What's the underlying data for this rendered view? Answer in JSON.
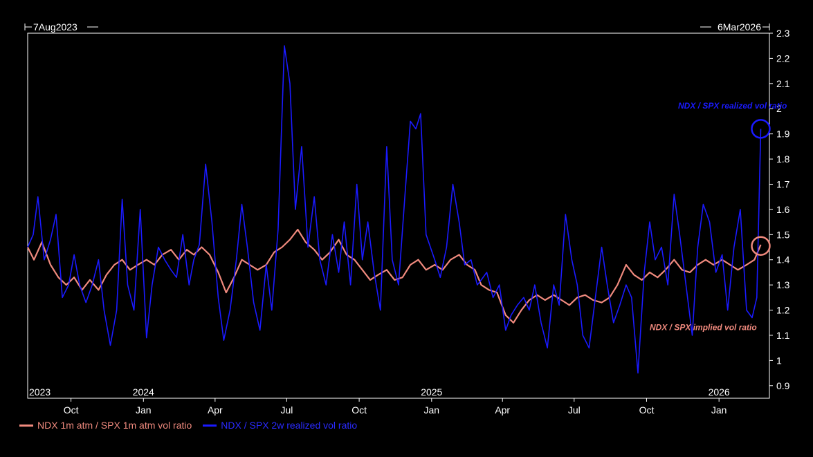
{
  "chart_data": {
    "type": "line",
    "range_start_label": "7Aug2023",
    "range_end_label": "6Mar2026",
    "x_start": "2023-08-07",
    "x_end": "2026-03-06",
    "ylim": [
      0.85,
      2.3
    ],
    "y_ticks": [
      0.9,
      1,
      1.1,
      1.2,
      1.3,
      1.4,
      1.5,
      1.6,
      1.7,
      1.8,
      1.9,
      2,
      2.1,
      2.2,
      2.3
    ],
    "x_month_ticks": [
      {
        "label": "Oct",
        "date": "2023-10-01"
      },
      {
        "label": "Jan",
        "date": "2024-01-01"
      },
      {
        "label": "Apr",
        "date": "2024-04-01"
      },
      {
        "label": "Jul",
        "date": "2024-07-01"
      },
      {
        "label": "Oct",
        "date": "2024-10-01"
      },
      {
        "label": "Jan",
        "date": "2025-01-01"
      },
      {
        "label": "Apr",
        "date": "2025-04-01"
      },
      {
        "label": "Jul",
        "date": "2025-07-01"
      },
      {
        "label": "Oct",
        "date": "2025-10-01"
      },
      {
        "label": "Jan",
        "date": "2026-01-01"
      }
    ],
    "x_year_labels": [
      {
        "label": "2023",
        "date": "2023-08-07"
      },
      {
        "label": "2024",
        "date": "2024-01-01"
      },
      {
        "label": "2025",
        "date": "2025-01-01"
      },
      {
        "label": "2026",
        "date": "2026-01-01"
      }
    ],
    "series": [
      {
        "name": "NDX 1m atm / SPX 1m atm vol ratio",
        "color": "#f08a7e",
        "points": [
          [
            "2023-08-07",
            1.45
          ],
          [
            "2023-08-15",
            1.4
          ],
          [
            "2023-08-25",
            1.47
          ],
          [
            "2023-09-05",
            1.38
          ],
          [
            "2023-09-15",
            1.33
          ],
          [
            "2023-09-25",
            1.3
          ],
          [
            "2023-10-05",
            1.33
          ],
          [
            "2023-10-15",
            1.28
          ],
          [
            "2023-10-25",
            1.32
          ],
          [
            "2023-11-05",
            1.28
          ],
          [
            "2023-11-15",
            1.34
          ],
          [
            "2023-11-25",
            1.38
          ],
          [
            "2023-12-05",
            1.4
          ],
          [
            "2023-12-15",
            1.36
          ],
          [
            "2023-12-25",
            1.38
          ],
          [
            "2024-01-05",
            1.4
          ],
          [
            "2024-01-15",
            1.38
          ],
          [
            "2024-01-25",
            1.42
          ],
          [
            "2024-02-05",
            1.44
          ],
          [
            "2024-02-15",
            1.4
          ],
          [
            "2024-02-25",
            1.44
          ],
          [
            "2024-03-05",
            1.42
          ],
          [
            "2024-03-15",
            1.45
          ],
          [
            "2024-03-25",
            1.42
          ],
          [
            "2024-04-05",
            1.35
          ],
          [
            "2024-04-15",
            1.27
          ],
          [
            "2024-04-25",
            1.33
          ],
          [
            "2024-05-05",
            1.4
          ],
          [
            "2024-05-15",
            1.38
          ],
          [
            "2024-05-25",
            1.36
          ],
          [
            "2024-06-05",
            1.38
          ],
          [
            "2024-06-15",
            1.43
          ],
          [
            "2024-06-25",
            1.45
          ],
          [
            "2024-07-05",
            1.48
          ],
          [
            "2024-07-15",
            1.52
          ],
          [
            "2024-07-25",
            1.47
          ],
          [
            "2024-08-05",
            1.44
          ],
          [
            "2024-08-15",
            1.4
          ],
          [
            "2024-08-25",
            1.43
          ],
          [
            "2024-09-05",
            1.48
          ],
          [
            "2024-09-15",
            1.42
          ],
          [
            "2024-09-25",
            1.4
          ],
          [
            "2024-10-05",
            1.36
          ],
          [
            "2024-10-15",
            1.32
          ],
          [
            "2024-10-25",
            1.34
          ],
          [
            "2024-11-05",
            1.36
          ],
          [
            "2024-11-15",
            1.32
          ],
          [
            "2024-11-25",
            1.33
          ],
          [
            "2024-12-05",
            1.38
          ],
          [
            "2024-12-15",
            1.4
          ],
          [
            "2024-12-25",
            1.36
          ],
          [
            "2025-01-05",
            1.38
          ],
          [
            "2025-01-15",
            1.36
          ],
          [
            "2025-01-25",
            1.4
          ],
          [
            "2025-02-05",
            1.42
          ],
          [
            "2025-02-15",
            1.38
          ],
          [
            "2025-02-25",
            1.36
          ],
          [
            "2025-03-05",
            1.3
          ],
          [
            "2025-03-15",
            1.28
          ],
          [
            "2025-03-25",
            1.27
          ],
          [
            "2025-04-05",
            1.18
          ],
          [
            "2025-04-15",
            1.15
          ],
          [
            "2025-04-25",
            1.2
          ],
          [
            "2025-05-05",
            1.24
          ],
          [
            "2025-05-15",
            1.26
          ],
          [
            "2025-05-25",
            1.24
          ],
          [
            "2025-06-05",
            1.26
          ],
          [
            "2025-06-15",
            1.24
          ],
          [
            "2025-06-25",
            1.22
          ],
          [
            "2025-07-05",
            1.25
          ],
          [
            "2025-07-15",
            1.26
          ],
          [
            "2025-07-25",
            1.24
          ],
          [
            "2025-08-05",
            1.23
          ],
          [
            "2025-08-15",
            1.25
          ],
          [
            "2025-08-25",
            1.3
          ],
          [
            "2025-09-05",
            1.38
          ],
          [
            "2025-09-15",
            1.34
          ],
          [
            "2025-09-25",
            1.32
          ],
          [
            "2025-10-05",
            1.35
          ],
          [
            "2025-10-15",
            1.33
          ],
          [
            "2025-10-25",
            1.36
          ],
          [
            "2025-11-05",
            1.4
          ],
          [
            "2025-11-15",
            1.36
          ],
          [
            "2025-11-25",
            1.35
          ],
          [
            "2025-12-05",
            1.38
          ],
          [
            "2025-12-15",
            1.4
          ],
          [
            "2025-12-25",
            1.38
          ],
          [
            "2026-01-05",
            1.4
          ],
          [
            "2026-01-15",
            1.38
          ],
          [
            "2026-01-25",
            1.36
          ],
          [
            "2026-02-05",
            1.38
          ],
          [
            "2026-02-15",
            1.4
          ],
          [
            "2026-02-23",
            1.46
          ]
        ]
      },
      {
        "name": "NDX / SPX 2w realized vol ratio",
        "color": "#1a1aff",
        "points": [
          [
            "2023-08-07",
            1.45
          ],
          [
            "2023-08-14",
            1.5
          ],
          [
            "2023-08-20",
            1.65
          ],
          [
            "2023-08-28",
            1.4
          ],
          [
            "2023-09-05",
            1.48
          ],
          [
            "2023-09-12",
            1.58
          ],
          [
            "2023-09-20",
            1.25
          ],
          [
            "2023-09-28",
            1.3
          ],
          [
            "2023-10-05",
            1.42
          ],
          [
            "2023-10-12",
            1.3
          ],
          [
            "2023-10-20",
            1.23
          ],
          [
            "2023-10-28",
            1.3
          ],
          [
            "2023-11-05",
            1.4
          ],
          [
            "2023-11-12",
            1.2
          ],
          [
            "2023-11-20",
            1.06
          ],
          [
            "2023-11-28",
            1.2
          ],
          [
            "2023-12-05",
            1.64
          ],
          [
            "2023-12-12",
            1.3
          ],
          [
            "2023-12-20",
            1.2
          ],
          [
            "2023-12-28",
            1.6
          ],
          [
            "2024-01-05",
            1.09
          ],
          [
            "2024-01-12",
            1.3
          ],
          [
            "2024-01-20",
            1.45
          ],
          [
            "2024-01-28",
            1.4
          ],
          [
            "2024-02-05",
            1.36
          ],
          [
            "2024-02-12",
            1.33
          ],
          [
            "2024-02-20",
            1.5
          ],
          [
            "2024-02-28",
            1.3
          ],
          [
            "2024-03-05",
            1.4
          ],
          [
            "2024-03-12",
            1.46
          ],
          [
            "2024-03-20",
            1.78
          ],
          [
            "2024-03-28",
            1.55
          ],
          [
            "2024-04-05",
            1.25
          ],
          [
            "2024-04-12",
            1.08
          ],
          [
            "2024-04-20",
            1.2
          ],
          [
            "2024-04-28",
            1.4
          ],
          [
            "2024-05-05",
            1.62
          ],
          [
            "2024-05-12",
            1.45
          ],
          [
            "2024-05-20",
            1.23
          ],
          [
            "2024-05-28",
            1.12
          ],
          [
            "2024-06-05",
            1.38
          ],
          [
            "2024-06-12",
            1.2
          ],
          [
            "2024-06-20",
            1.52
          ],
          [
            "2024-06-28",
            2.25
          ],
          [
            "2024-07-05",
            2.1
          ],
          [
            "2024-07-12",
            1.6
          ],
          [
            "2024-07-20",
            1.85
          ],
          [
            "2024-07-28",
            1.45
          ],
          [
            "2024-08-05",
            1.65
          ],
          [
            "2024-08-12",
            1.4
          ],
          [
            "2024-08-20",
            1.3
          ],
          [
            "2024-08-28",
            1.5
          ],
          [
            "2024-09-05",
            1.35
          ],
          [
            "2024-09-12",
            1.55
          ],
          [
            "2024-09-20",
            1.3
          ],
          [
            "2024-09-28",
            1.7
          ],
          [
            "2024-10-05",
            1.4
          ],
          [
            "2024-10-12",
            1.55
          ],
          [
            "2024-10-20",
            1.35
          ],
          [
            "2024-10-28",
            1.2
          ],
          [
            "2024-11-05",
            1.85
          ],
          [
            "2024-11-12",
            1.4
          ],
          [
            "2024-11-20",
            1.3
          ],
          [
            "2024-11-28",
            1.65
          ],
          [
            "2024-12-05",
            1.95
          ],
          [
            "2024-12-12",
            1.92
          ],
          [
            "2024-12-18",
            1.98
          ],
          [
            "2024-12-25",
            1.5
          ],
          [
            "2025-01-05",
            1.4
          ],
          [
            "2025-01-12",
            1.33
          ],
          [
            "2025-01-20",
            1.45
          ],
          [
            "2025-01-28",
            1.7
          ],
          [
            "2025-02-05",
            1.55
          ],
          [
            "2025-02-12",
            1.38
          ],
          [
            "2025-02-20",
            1.4
          ],
          [
            "2025-02-28",
            1.3
          ],
          [
            "2025-03-05",
            1.32
          ],
          [
            "2025-03-12",
            1.35
          ],
          [
            "2025-03-20",
            1.25
          ],
          [
            "2025-03-28",
            1.3
          ],
          [
            "2025-04-05",
            1.12
          ],
          [
            "2025-04-12",
            1.18
          ],
          [
            "2025-04-20",
            1.22
          ],
          [
            "2025-04-28",
            1.25
          ],
          [
            "2025-05-05",
            1.2
          ],
          [
            "2025-05-12",
            1.3
          ],
          [
            "2025-05-20",
            1.15
          ],
          [
            "2025-05-28",
            1.05
          ],
          [
            "2025-06-05",
            1.3
          ],
          [
            "2025-06-12",
            1.22
          ],
          [
            "2025-06-20",
            1.58
          ],
          [
            "2025-06-28",
            1.4
          ],
          [
            "2025-07-05",
            1.3
          ],
          [
            "2025-07-12",
            1.1
          ],
          [
            "2025-07-20",
            1.05
          ],
          [
            "2025-07-28",
            1.25
          ],
          [
            "2025-08-05",
            1.45
          ],
          [
            "2025-08-12",
            1.3
          ],
          [
            "2025-08-20",
            1.15
          ],
          [
            "2025-08-28",
            1.22
          ],
          [
            "2025-09-05",
            1.3
          ],
          [
            "2025-09-12",
            1.25
          ],
          [
            "2025-09-20",
            0.95
          ],
          [
            "2025-09-28",
            1.35
          ],
          [
            "2025-10-05",
            1.55
          ],
          [
            "2025-10-12",
            1.4
          ],
          [
            "2025-10-20",
            1.45
          ],
          [
            "2025-10-28",
            1.3
          ],
          [
            "2025-11-05",
            1.66
          ],
          [
            "2025-11-12",
            1.5
          ],
          [
            "2025-11-20",
            1.3
          ],
          [
            "2025-11-28",
            1.1
          ],
          [
            "2025-12-05",
            1.45
          ],
          [
            "2025-12-12",
            1.62
          ],
          [
            "2025-12-20",
            1.55
          ],
          [
            "2025-12-28",
            1.35
          ],
          [
            "2026-01-05",
            1.42
          ],
          [
            "2026-01-12",
            1.2
          ],
          [
            "2026-01-20",
            1.45
          ],
          [
            "2026-01-28",
            1.6
          ],
          [
            "2026-02-05",
            1.2
          ],
          [
            "2026-02-12",
            1.17
          ],
          [
            "2026-02-18",
            1.25
          ],
          [
            "2026-02-23",
            1.92
          ]
        ]
      }
    ],
    "annotations": [
      {
        "text": "NDX / SPX realized vol ratio",
        "date": "2025-11-10",
        "y": 2.0,
        "color": "#1a1aff",
        "marker_date": "2026-02-23",
        "marker_y": 1.92
      },
      {
        "text": "NDX / SPX implied vol ratio",
        "date": "2025-10-05",
        "y": 1.12,
        "color": "#f08a7e",
        "marker_date": "2026-02-23",
        "marker_y": 1.455
      }
    ],
    "colors": {
      "background": "#000000",
      "axis": "#ffffff",
      "text": "#ffffff"
    },
    "legend_position": "bottom-left"
  }
}
